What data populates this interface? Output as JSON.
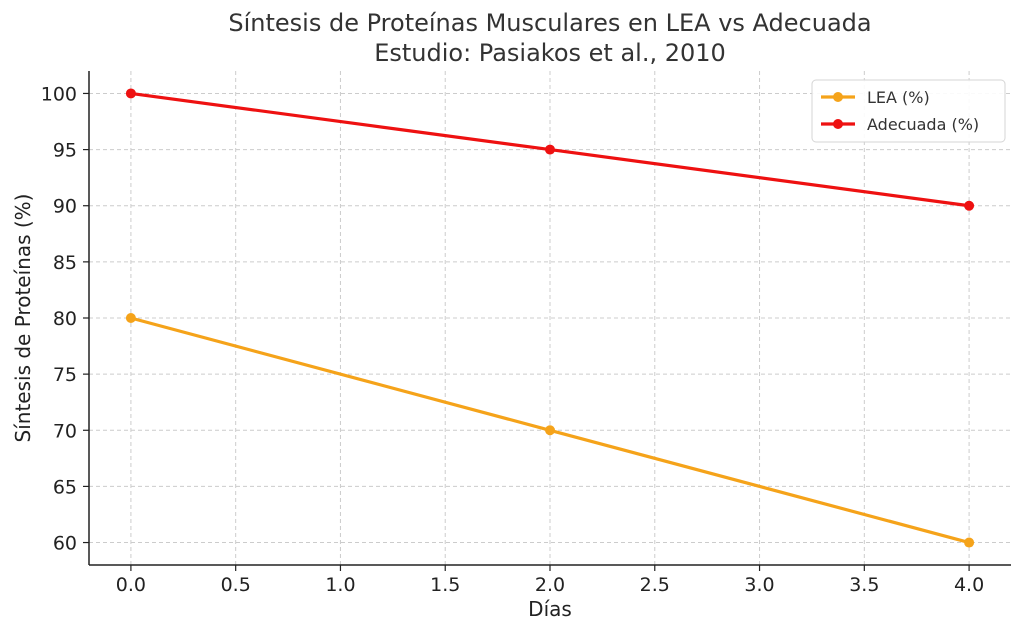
{
  "chart_data": {
    "type": "line",
    "title": "Síntesis de Proteínas Musculares en LEA vs Adecuada",
    "subtitle": "Estudio: Pasiakos et al., 2010",
    "xlabel": "Días",
    "ylabel": "Síntesis de Proteínas (%)",
    "xlim": [
      -0.2,
      4.2
    ],
    "ylim": [
      58,
      102
    ],
    "x_ticks": [
      0.0,
      0.5,
      1.0,
      1.5,
      2.0,
      2.5,
      3.0,
      3.5,
      4.0
    ],
    "x_tick_labels": [
      "0.0",
      "0.5",
      "1.0",
      "1.5",
      "2.0",
      "2.5",
      "3.0",
      "3.5",
      "4.0"
    ],
    "y_ticks": [
      60,
      65,
      70,
      75,
      80,
      85,
      90,
      95,
      100
    ],
    "y_tick_labels": [
      "60",
      "65",
      "70",
      "75",
      "80",
      "85",
      "90",
      "95",
      "100"
    ],
    "grid": true,
    "legend_position": "top-right",
    "x": [
      0,
      2,
      4
    ],
    "series": [
      {
        "name": "LEA (%)",
        "values": [
          80,
          70,
          60
        ],
        "color": "#f5a31a"
      },
      {
        "name": "Adecuada (%)",
        "values": [
          100,
          95,
          90
        ],
        "color": "#ee1111"
      }
    ]
  }
}
